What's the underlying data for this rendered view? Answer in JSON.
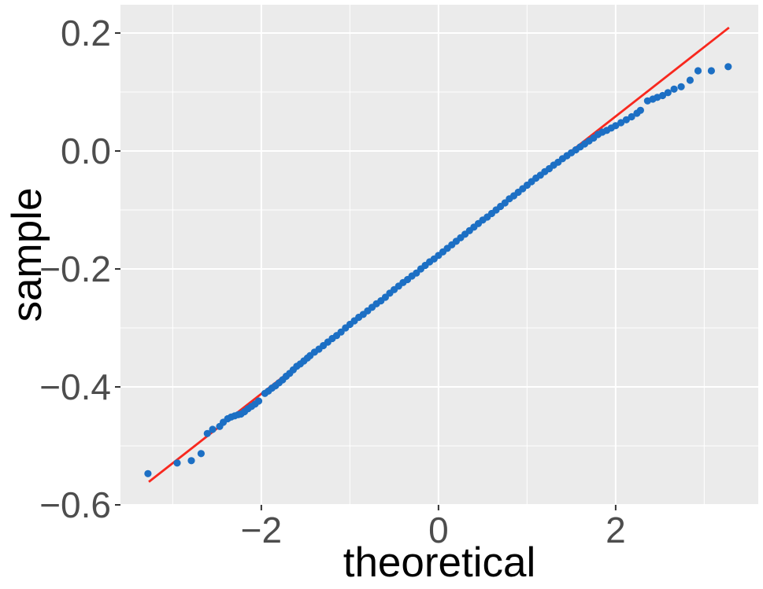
{
  "figure": {
    "x_axis_label": "theoretical",
    "y_axis_label": "sample"
  },
  "chart_data": {
    "type": "scatter",
    "subtype": "qq-plot",
    "title": "",
    "xlabel": "theoretical",
    "ylabel": "sample",
    "xlim": [
      -3.59,
      3.61
    ],
    "ylim": [
      -0.6,
      0.248
    ],
    "grid": true,
    "legend_position": "none",
    "x_major_ticks": [
      -2,
      0,
      2
    ],
    "x_tick_labels": [
      "−2",
      "0",
      "2"
    ],
    "x_minor_gridlines": [
      -3,
      -1,
      1,
      3
    ],
    "y_major_ticks": [
      0.2,
      0.0,
      -0.2,
      -0.4,
      -0.6
    ],
    "y_tick_labels": [
      "0.2",
      "0.0",
      "−0.2",
      "−0.4",
      "−0.6"
    ],
    "y_minor_gridlines": [
      0.1,
      -0.1,
      -0.3,
      -0.5
    ],
    "reference_line": {
      "slope": 0.1176,
      "intercept": -0.1765,
      "x_start": -3.27,
      "x_end": 3.28,
      "color": "#f8281e",
      "width": 2.8
    },
    "style": {
      "point_color": "#1c6fc4",
      "point_radius": 4.6,
      "panel_background": "#ebebeb",
      "gridline_color": "#ffffff",
      "major_gridline_width": 2,
      "minor_gridline_width": 1,
      "tick_label_color": "#4d4d4d",
      "tick_mark_color": "#333333",
      "axis_title_color": "#000000"
    },
    "points": [
      [
        -3.28,
        -0.547
      ],
      [
        -2.95,
        -0.529
      ],
      [
        -2.79,
        -0.525
      ],
      [
        -2.68,
        -0.513
      ],
      [
        -2.61,
        -0.479
      ],
      [
        -2.55,
        -0.472
      ],
      [
        -2.47,
        -0.467
      ],
      [
        -2.43,
        -0.46
      ],
      [
        -2.38,
        -0.454
      ],
      [
        -2.34,
        -0.451
      ],
      [
        -2.3,
        -0.449
      ],
      [
        -2.26,
        -0.447
      ],
      [
        -2.23,
        -0.446
      ],
      [
        -2.19,
        -0.442
      ],
      [
        -2.15,
        -0.437
      ],
      [
        -2.11,
        -0.433
      ],
      [
        -2.07,
        -0.429
      ],
      [
        -2.03,
        -0.424
      ],
      [
        -1.96,
        -0.411
      ],
      [
        -1.92,
        -0.407
      ],
      [
        -1.88,
        -0.402
      ],
      [
        -1.84,
        -0.398
      ],
      [
        -1.8,
        -0.393
      ],
      [
        -1.76,
        -0.388
      ],
      [
        -1.72,
        -0.382
      ],
      [
        -1.68,
        -0.377
      ],
      [
        -1.64,
        -0.371
      ],
      [
        -1.6,
        -0.365
      ],
      [
        -1.56,
        -0.361
      ],
      [
        -1.52,
        -0.356
      ],
      [
        -1.48,
        -0.351
      ],
      [
        -1.45,
        -0.347
      ],
      [
        -1.4,
        -0.341
      ],
      [
        -1.35,
        -0.336
      ],
      [
        -1.3,
        -0.33
      ],
      [
        -1.25,
        -0.324
      ],
      [
        -1.2,
        -0.318
      ],
      [
        -1.15,
        -0.313
      ],
      [
        -1.1,
        -0.307
      ],
      [
        -1.05,
        -0.3
      ],
      [
        -1.0,
        -0.294
      ],
      [
        -0.95,
        -0.288
      ],
      [
        -0.9,
        -0.282
      ],
      [
        -0.85,
        -0.277
      ],
      [
        -0.8,
        -0.271
      ],
      [
        -0.75,
        -0.265
      ],
      [
        -0.7,
        -0.259
      ],
      [
        -0.65,
        -0.254
      ],
      [
        -0.6,
        -0.248
      ],
      [
        -0.55,
        -0.241
      ],
      [
        -0.5,
        -0.235
      ],
      [
        -0.45,
        -0.229
      ],
      [
        -0.4,
        -0.223
      ],
      [
        -0.35,
        -0.218
      ],
      [
        -0.3,
        -0.212
      ],
      [
        -0.25,
        -0.207
      ],
      [
        -0.2,
        -0.2
      ],
      [
        -0.15,
        -0.194
      ],
      [
        -0.1,
        -0.188
      ],
      [
        -0.05,
        -0.183
      ],
      [
        0.0,
        -0.177
      ],
      [
        0.05,
        -0.171
      ],
      [
        0.1,
        -0.165
      ],
      [
        0.15,
        -0.159
      ],
      [
        0.2,
        -0.153
      ],
      [
        0.25,
        -0.147
      ],
      [
        0.3,
        -0.141
      ],
      [
        0.35,
        -0.135
      ],
      [
        0.4,
        -0.129
      ],
      [
        0.45,
        -0.123
      ],
      [
        0.5,
        -0.117
      ],
      [
        0.55,
        -0.112
      ],
      [
        0.6,
        -0.106
      ],
      [
        0.65,
        -0.1
      ],
      [
        0.7,
        -0.094
      ],
      [
        0.75,
        -0.088
      ],
      [
        0.8,
        -0.081
      ],
      [
        0.85,
        -0.076
      ],
      [
        0.9,
        -0.07
      ],
      [
        0.95,
        -0.064
      ],
      [
        1.0,
        -0.058
      ],
      [
        1.05,
        -0.052
      ],
      [
        1.1,
        -0.046
      ],
      [
        1.15,
        -0.041
      ],
      [
        1.2,
        -0.035
      ],
      [
        1.25,
        -0.03
      ],
      [
        1.3,
        -0.024
      ],
      [
        1.35,
        -0.019
      ],
      [
        1.4,
        -0.013
      ],
      [
        1.45,
        -0.008
      ],
      [
        1.5,
        -0.003
      ],
      [
        1.55,
        0.002
      ],
      [
        1.6,
        0.007
      ],
      [
        1.65,
        0.012
      ],
      [
        1.7,
        0.017
      ],
      [
        1.75,
        0.022
      ],
      [
        1.8,
        0.028
      ],
      [
        1.85,
        0.032
      ],
      [
        1.9,
        0.035
      ],
      [
        1.95,
        0.039
      ],
      [
        2.0,
        0.043
      ],
      [
        2.06,
        0.048
      ],
      [
        2.12,
        0.053
      ],
      [
        2.18,
        0.058
      ],
      [
        2.24,
        0.064
      ],
      [
        2.28,
        0.069
      ],
      [
        2.36,
        0.085
      ],
      [
        2.42,
        0.088
      ],
      [
        2.47,
        0.091
      ],
      [
        2.53,
        0.094
      ],
      [
        2.59,
        0.099
      ],
      [
        2.66,
        0.105
      ],
      [
        2.74,
        0.109
      ],
      [
        2.84,
        0.12
      ],
      [
        2.93,
        0.136
      ],
      [
        3.08,
        0.136
      ],
      [
        3.27,
        0.143
      ]
    ]
  }
}
